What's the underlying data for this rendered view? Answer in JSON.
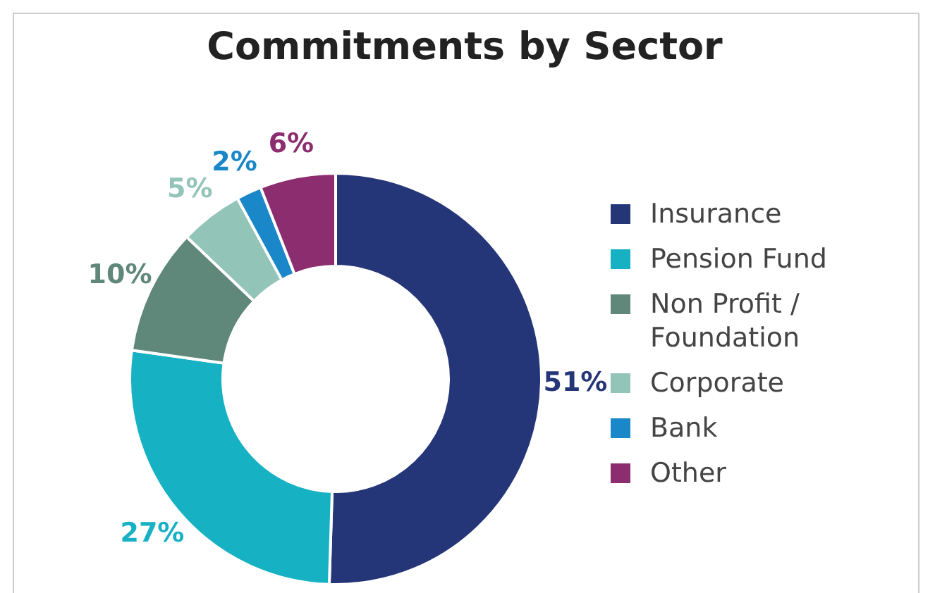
{
  "chart_data": {
    "type": "donut",
    "title": "Commitments by Sector",
    "categories": [
      "Insurance",
      "Pension Fund",
      "Non Profit / Foundation",
      "Corporate",
      "Bank",
      "Other"
    ],
    "values": [
      51,
      27,
      10,
      5,
      2,
      6
    ],
    "colors": [
      "#253678",
      "#17b1c4",
      "#5f877a",
      "#93c4b8",
      "#1a87c9",
      "#8b2d6e"
    ],
    "value_labels": [
      "51%",
      "27%",
      "10%",
      "5%",
      "2%",
      "6%"
    ],
    "legend": "right"
  }
}
